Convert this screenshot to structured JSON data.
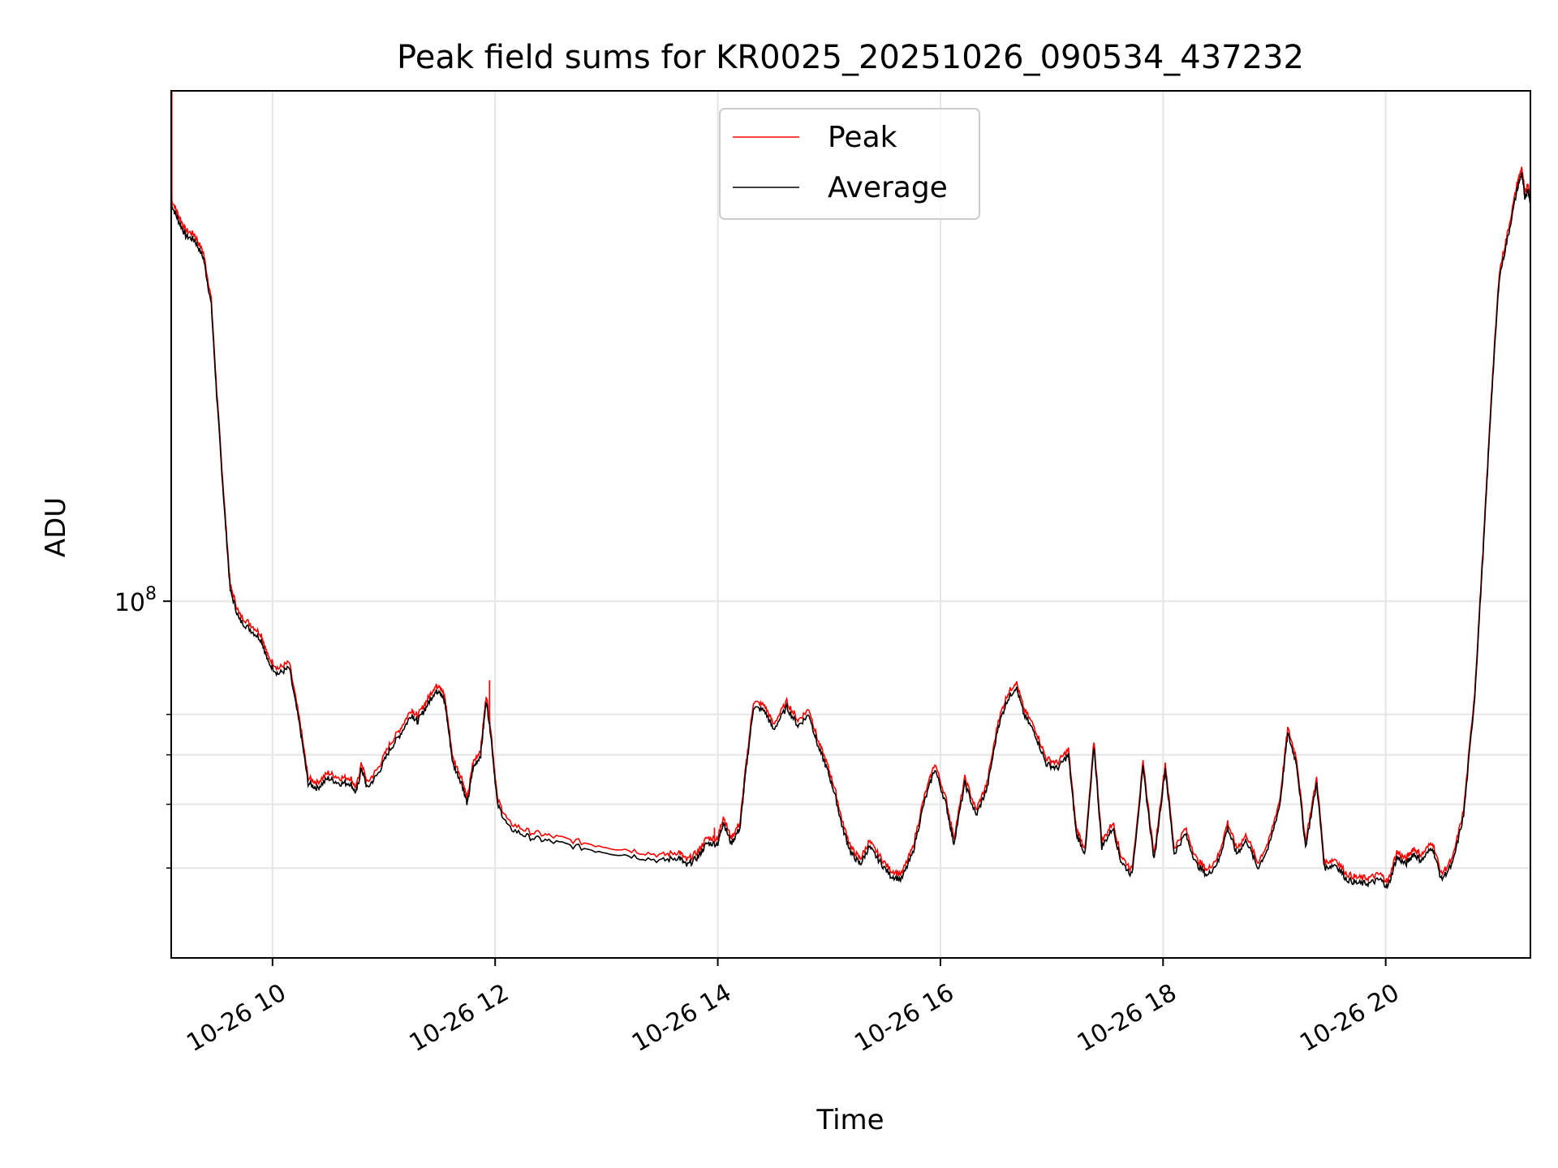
{
  "chart_data": {
    "type": "line",
    "title": "Peak field sums for KR0025_20251026_090534_437232",
    "xlabel": "Time",
    "ylabel": "ADU",
    "yscale": "log",
    "ylim": [
      20000000,
      1000000000
    ],
    "xlim": [
      9.09,
      21.3
    ],
    "grid": true,
    "legend_position": "top-center",
    "x_ticks": [
      {
        "value": 10,
        "label": "10-26 10"
      },
      {
        "value": 12,
        "label": "10-26 12"
      },
      {
        "value": 14,
        "label": "10-26 14"
      },
      {
        "value": 16,
        "label": "10-26 16"
      },
      {
        "value": 18,
        "label": "10-26 18"
      },
      {
        "value": 20,
        "label": "10-26 20"
      }
    ],
    "y_ticks": [
      {
        "value": 100000000,
        "label_base": "10",
        "label_exp": "8"
      }
    ],
    "y_minor_ticks": [
      30000000,
      40000000,
      50000000,
      60000000
    ],
    "series": [
      {
        "name": "Peak",
        "color": "#ff0000",
        "spikes": [
          {
            "x": 9.095,
            "y": 1000000000
          },
          {
            "x": 11.95,
            "y": 70000000
          },
          {
            "x": 13.97,
            "y": 36000000
          }
        ]
      },
      {
        "name": "Average",
        "color": "#000000",
        "points": [
          [
            9.09,
            600000000
          ],
          [
            9.15,
            560000000
          ],
          [
            9.22,
            520000000
          ],
          [
            9.3,
            510000000
          ],
          [
            9.38,
            470000000
          ],
          [
            9.45,
            380000000
          ],
          [
            9.5,
            250000000
          ],
          [
            9.56,
            160000000
          ],
          [
            9.62,
            105000000
          ],
          [
            9.7,
            92000000
          ],
          [
            9.8,
            88000000
          ],
          [
            9.9,
            84000000
          ],
          [
            9.96,
            76000000
          ],
          [
            10.05,
            72000000
          ],
          [
            10.15,
            74000000
          ],
          [
            10.25,
            56000000
          ],
          [
            10.32,
            44000000
          ],
          [
            10.4,
            43000000
          ],
          [
            10.5,
            45000000
          ],
          [
            10.6,
            44000000
          ],
          [
            10.7,
            44000000
          ],
          [
            10.75,
            42000000
          ],
          [
            10.8,
            47000000
          ],
          [
            10.85,
            43000000
          ],
          [
            10.95,
            46000000
          ],
          [
            11.05,
            51000000
          ],
          [
            11.15,
            55000000
          ],
          [
            11.25,
            60000000
          ],
          [
            11.3,
            58000000
          ],
          [
            11.38,
            62000000
          ],
          [
            11.45,
            66000000
          ],
          [
            11.5,
            67000000
          ],
          [
            11.55,
            63000000
          ],
          [
            11.62,
            48000000
          ],
          [
            11.7,
            44000000
          ],
          [
            11.75,
            40000000
          ],
          [
            11.8,
            47000000
          ],
          [
            11.87,
            50000000
          ],
          [
            11.92,
            64000000
          ],
          [
            11.96,
            55000000
          ],
          [
            12.02,
            40000000
          ],
          [
            12.12,
            36000000
          ],
          [
            12.3,
            34500000
          ],
          [
            12.5,
            33800000
          ],
          [
            12.8,
            32800000
          ],
          [
            13.2,
            31800000
          ],
          [
            13.5,
            31000000
          ],
          [
            13.65,
            31500000
          ],
          [
            13.72,
            30300000
          ],
          [
            13.82,
            31500000
          ],
          [
            13.9,
            33500000
          ],
          [
            14.0,
            33500000
          ],
          [
            14.05,
            37000000
          ],
          [
            14.12,
            33500000
          ],
          [
            14.2,
            36000000
          ],
          [
            14.25,
            46000000
          ],
          [
            14.32,
            62000000
          ],
          [
            14.42,
            61000000
          ],
          [
            14.5,
            56000000
          ],
          [
            14.62,
            62000000
          ],
          [
            14.72,
            57000000
          ],
          [
            14.82,
            60000000
          ],
          [
            14.9,
            52000000
          ],
          [
            14.98,
            47000000
          ],
          [
            15.05,
            42000000
          ],
          [
            15.12,
            36000000
          ],
          [
            15.2,
            32000000
          ],
          [
            15.28,
            30500000
          ],
          [
            15.36,
            33000000
          ],
          [
            15.45,
            31000000
          ],
          [
            15.55,
            29000000
          ],
          [
            15.65,
            28500000
          ],
          [
            15.75,
            32000000
          ],
          [
            15.85,
            40000000
          ],
          [
            15.95,
            47000000
          ],
          [
            16.05,
            40000000
          ],
          [
            16.12,
            33500000
          ],
          [
            16.22,
            44000000
          ],
          [
            16.32,
            38000000
          ],
          [
            16.42,
            43000000
          ],
          [
            16.52,
            57000000
          ],
          [
            16.6,
            64000000
          ],
          [
            16.68,
            68000000
          ],
          [
            16.75,
            60000000
          ],
          [
            16.85,
            55000000
          ],
          [
            16.95,
            48000000
          ],
          [
            17.05,
            47000000
          ],
          [
            17.15,
            50000000
          ],
          [
            17.22,
            35000000
          ],
          [
            17.3,
            32000000
          ],
          [
            17.38,
            52000000
          ],
          [
            17.45,
            33000000
          ],
          [
            17.55,
            36000000
          ],
          [
            17.62,
            31000000
          ],
          [
            17.72,
            29000000
          ],
          [
            17.82,
            47000000
          ],
          [
            17.92,
            31000000
          ],
          [
            18.02,
            47000000
          ],
          [
            18.1,
            32000000
          ],
          [
            18.2,
            35000000
          ],
          [
            18.3,
            30500000
          ],
          [
            18.4,
            29000000
          ],
          [
            18.5,
            31000000
          ],
          [
            18.58,
            36000000
          ],
          [
            18.66,
            32000000
          ],
          [
            18.75,
            34000000
          ],
          [
            18.85,
            30000000
          ],
          [
            18.95,
            33000000
          ],
          [
            19.05,
            40000000
          ],
          [
            19.12,
            55000000
          ],
          [
            19.2,
            48000000
          ],
          [
            19.28,
            33000000
          ],
          [
            19.38,
            44000000
          ],
          [
            19.45,
            30000000
          ],
          [
            19.55,
            30500000
          ],
          [
            19.65,
            28500000
          ],
          [
            19.75,
            28000000
          ],
          [
            19.85,
            28000000
          ],
          [
            19.95,
            28500000
          ],
          [
            20.02,
            27500000
          ],
          [
            20.1,
            31500000
          ],
          [
            20.18,
            30500000
          ],
          [
            20.25,
            32000000
          ],
          [
            20.32,
            31000000
          ],
          [
            20.42,
            33000000
          ],
          [
            20.5,
            28500000
          ],
          [
            20.6,
            30500000
          ],
          [
            20.7,
            38000000
          ],
          [
            20.8,
            65000000
          ],
          [
            20.88,
            130000000
          ],
          [
            20.95,
            250000000
          ],
          [
            21.02,
            430000000
          ],
          [
            21.1,
            520000000
          ],
          [
            21.18,
            640000000
          ],
          [
            21.22,
            690000000
          ],
          [
            21.25,
            620000000
          ],
          [
            21.28,
            640000000
          ],
          [
            21.3,
            600000000
          ]
        ]
      }
    ]
  },
  "legend": {
    "peak_label": "Peak",
    "average_label": "Average",
    "peak_color": "#ff0000",
    "average_color": "#000000"
  }
}
